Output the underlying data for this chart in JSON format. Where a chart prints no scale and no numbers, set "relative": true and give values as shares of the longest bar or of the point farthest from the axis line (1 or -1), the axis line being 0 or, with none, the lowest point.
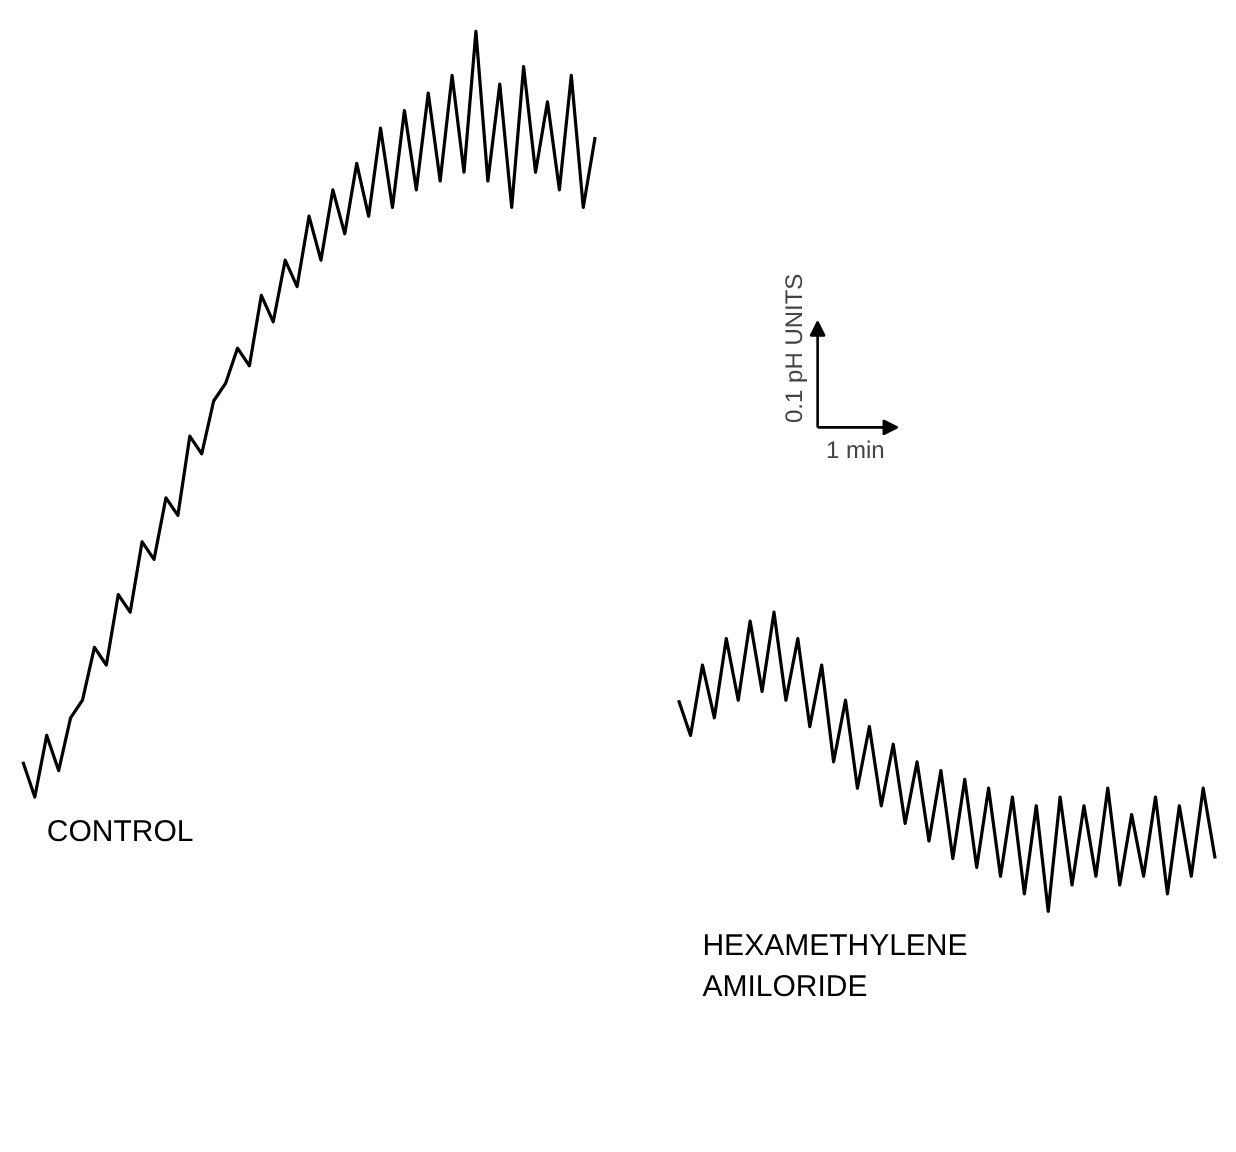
{
  "chart_data": {
    "type": "line",
    "relative": true,
    "tick_labels": false,
    "grid": false,
    "legend": false,
    "marker": "none",
    "line_style": "solid",
    "annotations": [
      "0.1 pH UNITS",
      "1 min"
    ],
    "categories": [
      null,
      null,
      null,
      null,
      null,
      null,
      null,
      null,
      null,
      null,
      null,
      null,
      null,
      null,
      null,
      null,
      null,
      null,
      null,
      null,
      null,
      null,
      null,
      null,
      null,
      null,
      null,
      null,
      null,
      null,
      null,
      null,
      null,
      null,
      null,
      null,
      null,
      null,
      null,
      null,
      null,
      null,
      null,
      null,
      null,
      null,
      null,
      null,
      null,
      null,
      null,
      null,
      null,
      null,
      null,
      null,
      null,
      null,
      null,
      null,
      null,
      null,
      null,
      null,
      null,
      null,
      null,
      null,
      null,
      null,
      null,
      null,
      null,
      null,
      null,
      null,
      null,
      null,
      null,
      null,
      null,
      null,
      null,
      null,
      null,
      null,
      null,
      null,
      null,
      null,
      null,
      null,
      null,
      null,
      null,
      null,
      null,
      null,
      null,
      null,
      null
    ],
    "series": [
      {
        "name": "CONTROL",
        "color": "#000000",
        "values": [
          0.17,
          0.13,
          0.2,
          0.16,
          0.22,
          0.24,
          0.3,
          0.28,
          0.36,
          0.34,
          0.42,
          0.4,
          0.47,
          0.45,
          0.54,
          0.52,
          0.58,
          0.6,
          0.64,
          0.62,
          0.7,
          0.67,
          0.74,
          0.71,
          0.79,
          0.74,
          0.82,
          0.77,
          0.85,
          0.79,
          0.89,
          0.8,
          0.91,
          0.82,
          0.93,
          0.83,
          0.95,
          0.84,
          1.0,
          0.83,
          0.94,
          0.8,
          0.96,
          0.84,
          0.92,
          0.82,
          0.95,
          0.8,
          0.88,
          null,
          null,
          null,
          null,
          null,
          null,
          null,
          null,
          null,
          null,
          null,
          null,
          null,
          null,
          null,
          null,
          null,
          null,
          null,
          null,
          null,
          null,
          null,
          null,
          null,
          null,
          null,
          null,
          null,
          null,
          null,
          null,
          null,
          null,
          null,
          null,
          null,
          null,
          null,
          null,
          null,
          null,
          null,
          null,
          null,
          null,
          null,
          null,
          null,
          null,
          null,
          null
        ]
      },
      {
        "name": "HEXAMETHYLENE AMILORIDE",
        "color": "#000000",
        "values": [
          null,
          null,
          null,
          null,
          null,
          null,
          null,
          null,
          null,
          null,
          null,
          null,
          null,
          null,
          null,
          null,
          null,
          null,
          null,
          null,
          null,
          null,
          null,
          null,
          null,
          null,
          null,
          null,
          null,
          null,
          null,
          null,
          null,
          null,
          null,
          null,
          null,
          null,
          null,
          null,
          null,
          null,
          null,
          null,
          null,
          null,
          null,
          null,
          null,
          null,
          null,
          null,
          null,
          null,
          null,
          0.24,
          0.2,
          0.28,
          0.22,
          0.31,
          0.24,
          0.33,
          0.25,
          0.34,
          0.24,
          0.31,
          0.21,
          0.28,
          0.17,
          0.24,
          0.14,
          0.21,
          0.12,
          0.19,
          0.1,
          0.17,
          0.08,
          0.16,
          0.06,
          0.15,
          0.05,
          0.14,
          0.04,
          0.13,
          0.02,
          0.12,
          0.0,
          0.13,
          0.03,
          0.12,
          0.04,
          0.14,
          0.03,
          0.11,
          0.04,
          0.13,
          0.02,
          0.12,
          0.04,
          0.14,
          0.06
        ]
      }
    ]
  }
}
